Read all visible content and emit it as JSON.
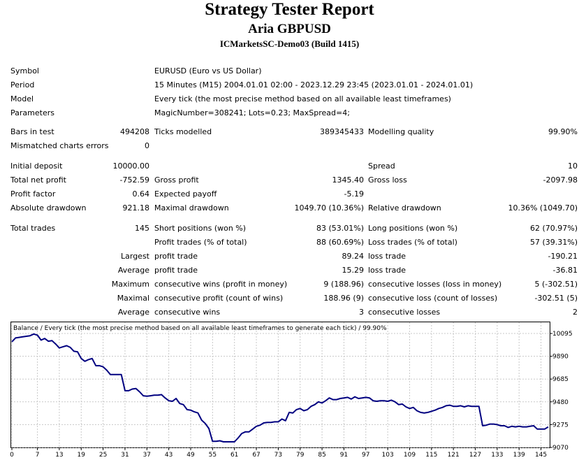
{
  "header": {
    "title": "Strategy Tester Report",
    "subtitle": "Aria GBPUSD",
    "server": "ICMarketsSC-Demo03 (Build 1415)"
  },
  "settings": {
    "symbol_label": "Symbol",
    "symbol_value": "EURUSD (Euro vs US Dollar)",
    "period_label": "Period",
    "period_value": "15 Minutes (M15) 2004.01.01 02:00 - 2023.12.29 23:45 (2023.01.01 - 2024.01.01)",
    "model_label": "Model",
    "model_value": "Every tick (the most precise method based on all available least timeframes)",
    "parameters_label": "Parameters",
    "parameters_value": "MagicNumber=308241; Lots=0.23; MaxSpread=4;"
  },
  "stats": {
    "bars_label": "Bars in test",
    "bars_value": "494208",
    "ticks_label": "Ticks modelled",
    "ticks_value": "389345433",
    "quality_label": "Modelling quality",
    "quality_value": "99.90%",
    "mismatch_label": "Mismatched charts errors",
    "mismatch_value": "0",
    "deposit_label": "Initial deposit",
    "deposit_value": "10000.00",
    "spread_label": "Spread",
    "spread_value": "10",
    "netprofit_label": "Total net profit",
    "netprofit_value": "-752.59",
    "grossprofit_label": "Gross profit",
    "grossprofit_value": "1345.40",
    "grossloss_label": "Gross loss",
    "grossloss_value": "-2097.98",
    "pf_label": "Profit factor",
    "pf_value": "0.64",
    "payoff_label": "Expected payoff",
    "payoff_value": "-5.19",
    "absdd_label": "Absolute drawdown",
    "absdd_value": "921.18",
    "maxdd_label": "Maximal drawdown",
    "maxdd_value": "1049.70 (10.36%)",
    "reldd_label": "Relative drawdown",
    "reldd_value": "10.36% (1049.70)",
    "trades_label": "Total trades",
    "trades_value": "145",
    "short_label": "Short positions (won %)",
    "short_value": "83 (53.01%)",
    "long_label": "Long positions (won %)",
    "long_value": "62 (70.97%)",
    "ptrades_label": "Profit trades (% of total)",
    "ptrades_value": "88 (60.69%)",
    "ltrades_label": "Loss trades (% of total)",
    "ltrades_value": "57 (39.31%)",
    "largest_label": "Largest",
    "largest_profit_label": "profit trade",
    "largest_profit_value": "89.24",
    "largest_loss_label": "loss trade",
    "largest_loss_value": "-190.21",
    "average_label": "Average",
    "average_profit_label": "profit trade",
    "average_profit_value": "15.29",
    "average_loss_label": "loss trade",
    "average_loss_value": "-36.81",
    "maximum_label": "Maximum",
    "max_wins_label": "consecutive wins (profit in money)",
    "max_wins_value": "9 (188.96)",
    "max_losses_label": "consecutive losses (loss in money)",
    "max_losses_value": "5 (-302.51)",
    "maximal_label": "Maximal",
    "maximal_profit_label": "consecutive profit (count of wins)",
    "maximal_profit_value": "188.96 (9)",
    "maximal_loss_label": "consecutive loss (count of losses)",
    "maximal_loss_value": "-302.51 (5)",
    "avgcons_label": "Average",
    "avg_wins_label": "consecutive wins",
    "avg_wins_value": "3",
    "avg_losses_label": "consecutive losses",
    "avg_losses_value": "2"
  },
  "chart_data": {
    "type": "line",
    "title": "Balance / Every tick (the most precise method based on all available least timeframes to generate each tick) / 99.90%",
    "xlabel": "",
    "ylabel": "",
    "xlim": [
      0,
      147
    ],
    "ylim": [
      9070,
      10200
    ],
    "x_ticks": [
      0,
      7,
      13,
      19,
      25,
      31,
      37,
      43,
      49,
      55,
      61,
      67,
      73,
      79,
      85,
      91,
      97,
      103,
      109,
      115,
      121,
      127,
      133,
      139,
      145
    ],
    "y_ticks": [
      10095,
      9890,
      9685,
      9480,
      9275,
      9070
    ],
    "grid": true,
    "line_color": "#000080",
    "series": [
      {
        "x": [
          0,
          1,
          2,
          3,
          4,
          5,
          6,
          7,
          8,
          9,
          10,
          11,
          12,
          13,
          14,
          15,
          16,
          17,
          18,
          19,
          20,
          21,
          22,
          23,
          24,
          25,
          26,
          27,
          28,
          29,
          30,
          31,
          32,
          33,
          34,
          35,
          36,
          37,
          38,
          39,
          40,
          41,
          42,
          43,
          44,
          45,
          46,
          47,
          48,
          49,
          50,
          51,
          52,
          53,
          54,
          55,
          56,
          57,
          58,
          59,
          60,
          61,
          62,
          63,
          64,
          65,
          66,
          67,
          68,
          69,
          70,
          71,
          72,
          73,
          74,
          75,
          76,
          77,
          78,
          79,
          80,
          81,
          82,
          83,
          84,
          85,
          86,
          87,
          88,
          89,
          90,
          91,
          92,
          93,
          94,
          95,
          96,
          97,
          98,
          99,
          100,
          101,
          102,
          103,
          104,
          105,
          106,
          107,
          108,
          109,
          110,
          111,
          112,
          113,
          114,
          115,
          116,
          117,
          118,
          119,
          120,
          121,
          122,
          123,
          124,
          125,
          126,
          127,
          128,
          129,
          130,
          131,
          132,
          133,
          134,
          135,
          136,
          137,
          138,
          139,
          140,
          141,
          142,
          143,
          144,
          145,
          146,
          147
        ],
        "values": [
          10020,
          10055,
          10060,
          10065,
          10070,
          10075,
          10090,
          10080,
          10035,
          10050,
          10025,
          10030,
          10000,
          9965,
          9975,
          9985,
          9970,
          9935,
          9930,
          9870,
          9845,
          9860,
          9870,
          9805,
          9805,
          9795,
          9765,
          9725,
          9725,
          9725,
          9725,
          9580,
          9580,
          9595,
          9600,
          9570,
          9535,
          9530,
          9535,
          9540,
          9540,
          9545,
          9515,
          9490,
          9485,
          9510,
          9465,
          9455,
          9410,
          9405,
          9390,
          9380,
          9315,
          9285,
          9240,
          9125,
          9125,
          9130,
          9120,
          9120,
          9120,
          9120,
          9155,
          9195,
          9210,
          9210,
          9235,
          9260,
          9270,
          9290,
          9295,
          9295,
          9300,
          9300,
          9325,
          9310,
          9385,
          9380,
          9410,
          9420,
          9400,
          9410,
          9440,
          9455,
          9480,
          9470,
          9490,
          9515,
          9500,
          9500,
          9510,
          9515,
          9520,
          9505,
          9525,
          9510,
          9515,
          9520,
          9515,
          9490,
          9485,
          9490,
          9490,
          9485,
          9495,
          9480,
          9455,
          9460,
          9435,
          9420,
          9430,
          9400,
          9385,
          9380,
          9385,
          9395,
          9405,
          9420,
          9430,
          9445,
          9450,
          9440,
          9440,
          9445,
          9435,
          9445,
          9440,
          9440,
          9440,
          9265,
          9270,
          9280,
          9280,
          9275,
          9265,
          9265,
          9250,
          9260,
          9255,
          9260,
          9255,
          9255,
          9260,
          9265,
          9235,
          9235,
          9235,
          9255
        ]
      }
    ]
  }
}
